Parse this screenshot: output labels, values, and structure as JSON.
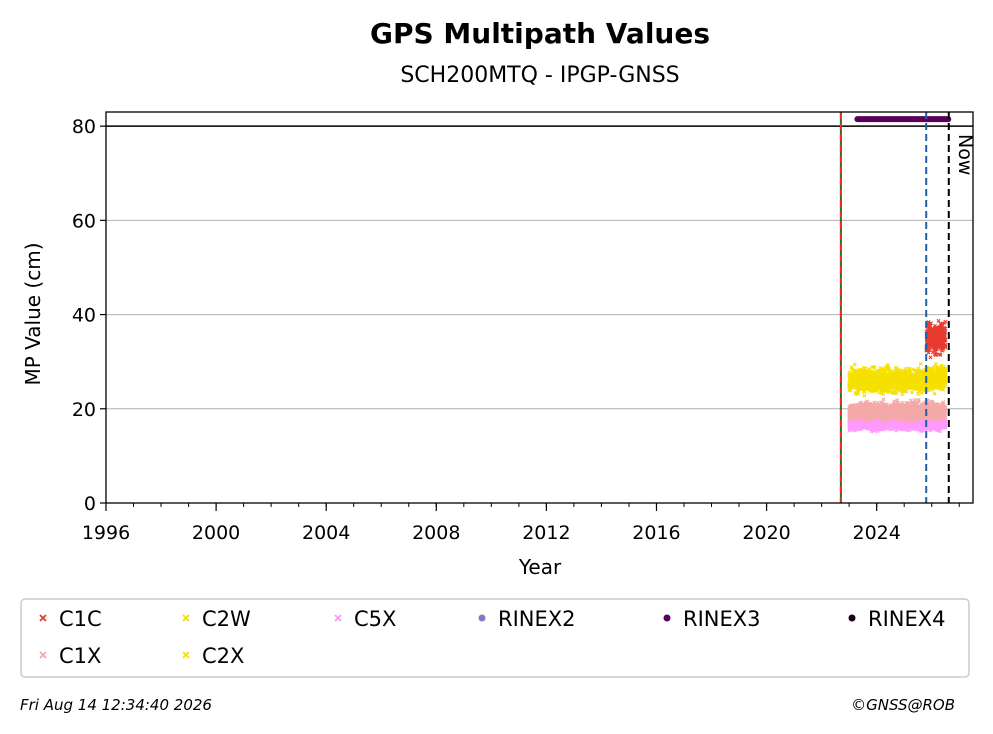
{
  "chart_data": {
    "type": "scatter",
    "title": "GPS Multipath Values",
    "subtitle": "SCH200MTQ - IPGP-GNSS",
    "xlabel": "Year",
    "ylabel": "MP Value (cm)",
    "xlim": [
      1996,
      2027.5
    ],
    "ylim": [
      0,
      83
    ],
    "xticks": [
      "1996",
      "2000",
      "2004",
      "2008",
      "2012",
      "2016",
      "2020",
      "2024"
    ],
    "yticks": [
      "0",
      "20",
      "40",
      "60",
      "80"
    ],
    "grid": "horizontal",
    "hline": 80,
    "vlines": [
      {
        "x": 2022.7,
        "color": "#1a7a1a",
        "style": "solid"
      },
      {
        "x": 2022.7,
        "color": "#e03030",
        "style": "dashed"
      },
      {
        "x": 2025.8,
        "color": "#1f5fa8",
        "style": "dashed"
      },
      {
        "x": 2026.62,
        "color": "#000000",
        "style": "dashed",
        "label": "Now"
      }
    ],
    "rinex_bar": {
      "start": 2023.3,
      "end": 2026.6,
      "y": 81.5,
      "color": "#5a005a"
    },
    "series": [
      {
        "name": "C1C",
        "color": "#e83a2f",
        "marker": "x",
        "start": 2025.8,
        "end": 2026.5,
        "mean": 35,
        "spread": 3.5
      },
      {
        "name": "C2W",
        "color": "#f5e000",
        "marker": "x",
        "start": 2023.0,
        "end": 2026.5,
        "mean": 26,
        "spread": 2.5
      },
      {
        "name": "C5X",
        "color": "#ff99ff",
        "marker": "x",
        "start": 2023.0,
        "end": 2026.5,
        "mean": 17,
        "spread": 1.5
      },
      {
        "name": "RINEX2",
        "color": "#8878bb",
        "marker": "o"
      },
      {
        "name": "RINEX3",
        "color": "#5a005a",
        "marker": "o"
      },
      {
        "name": "RINEX4",
        "color": "#1a001a",
        "marker": "o"
      },
      {
        "name": "C1X",
        "color": "#f4a8a8",
        "marker": "x",
        "start": 2023.0,
        "end": 2026.5,
        "mean": 19.5,
        "spread": 1.8
      },
      {
        "name": "C2X",
        "color": "#f5e000",
        "marker": "x",
        "start": 2025.8,
        "end": 2026.5,
        "mean": 27,
        "spread": 2
      }
    ],
    "legend": "bottom"
  },
  "footer": {
    "timestamp": "Fri Aug 14 12:34:40 2026",
    "copyright": "©GNSS@ROB"
  }
}
